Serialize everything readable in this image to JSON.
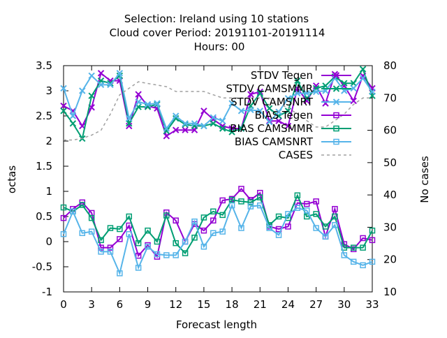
{
  "chart_data": {
    "type": "line",
    "title": [
      "Selection: Ireland using    10 stations",
      "Cloud cover   Period: 20191101-20191114",
      "Hours:  00"
    ],
    "xlabel": "Forecast length",
    "ylabel": "octas",
    "y2label": "No cases",
    "xlim": [
      0,
      33
    ],
    "ylim": [
      -1,
      3.5
    ],
    "y2lim": [
      10,
      80
    ],
    "x_ticks": [
      0,
      3,
      6,
      9,
      12,
      15,
      18,
      21,
      24,
      27,
      30,
      33
    ],
    "y_ticks": [
      "3.5",
      "3",
      "2.5",
      "2",
      "1.5",
      "1",
      "0.5",
      "0",
      "-0.5",
      "-1"
    ],
    "y2_ticks": [
      "80",
      "70",
      "60",
      "50",
      "40",
      "30",
      "20",
      "10"
    ],
    "y_tick_values": [
      3.5,
      3,
      2.5,
      2,
      1.5,
      1,
      0.5,
      0,
      -0.5,
      -1
    ],
    "y2_tick_values": [
      80,
      70,
      60,
      50,
      40,
      30,
      20,
      10
    ],
    "legend_position": "top-right",
    "x": [
      0,
      1,
      2,
      3,
      4,
      5,
      6,
      7,
      8,
      9,
      10,
      11,
      12,
      13,
      14,
      15,
      16,
      17,
      18,
      19,
      20,
      21,
      22,
      23,
      24,
      25,
      26,
      27,
      28,
      29,
      30,
      31,
      32,
      33
    ],
    "series": [
      {
        "name": "STDV Tegen",
        "axis": "y",
        "color": "#9400d3",
        "marker": "x",
        "dash": false,
        "values": [
          2.7,
          2.6,
          2.3,
          2.67,
          3.35,
          3.2,
          3.2,
          2.3,
          2.93,
          2.7,
          2.65,
          2.1,
          2.22,
          2.22,
          2.22,
          2.6,
          2.43,
          2.3,
          2.25,
          2.25,
          2.93,
          2.98,
          2.4,
          2.4,
          2.3,
          3.05,
          2.8,
          3.1,
          2.75,
          3.33,
          3.1,
          2.8,
          3.3,
          3.05
        ]
      },
      {
        "name": "STDV CAMSMMR",
        "axis": "y",
        "color": "#009e73",
        "marker": "x",
        "dash": false,
        "values": [
          2.6,
          2.35,
          2.05,
          2.9,
          3.2,
          3.15,
          3.3,
          2.35,
          2.68,
          2.68,
          2.73,
          2.2,
          2.45,
          2.33,
          2.3,
          2.3,
          2.35,
          2.25,
          2.18,
          2.25,
          2.7,
          2.95,
          2.65,
          2.5,
          2.6,
          3.2,
          2.85,
          3.05,
          3.1,
          3.28,
          3.15,
          3.15,
          3.43,
          2.9
        ]
      },
      {
        "name": "STDV CAMSNRT",
        "axis": "y",
        "color": "#56b4e9",
        "marker": "x",
        "dash": false,
        "values": [
          3.05,
          2.5,
          3.0,
          3.3,
          3.12,
          3.12,
          3.35,
          2.45,
          2.78,
          2.73,
          2.75,
          2.25,
          2.5,
          2.35,
          2.35,
          2.3,
          2.47,
          2.4,
          2.75,
          2.6,
          2.62,
          2.6,
          2.38,
          2.58,
          2.85,
          2.95,
          2.95,
          2.98,
          3.0,
          3.25,
          3.0,
          3.05,
          3.25,
          2.98
        ]
      },
      {
        "name": "BIAS Tegen",
        "axis": "y",
        "color": "#9400d3",
        "marker": "square",
        "dash": false,
        "values": [
          0.47,
          0.65,
          0.78,
          0.57,
          -0.12,
          -0.12,
          0.05,
          0.32,
          -0.28,
          -0.07,
          -0.3,
          0.58,
          0.42,
          0.0,
          0.35,
          0.22,
          0.42,
          0.82,
          0.85,
          1.05,
          0.83,
          0.97,
          0.3,
          0.25,
          0.3,
          0.77,
          0.75,
          0.8,
          0.1,
          0.65,
          -0.05,
          -0.15,
          0.07,
          0.03
        ]
      },
      {
        "name": "BIAS CAMSMMR",
        "axis": "y",
        "color": "#009e73",
        "marker": "square",
        "dash": false,
        "values": [
          0.68,
          0.6,
          0.73,
          0.47,
          0.03,
          0.27,
          0.25,
          0.5,
          -0.03,
          0.22,
          0.0,
          0.52,
          -0.03,
          -0.23,
          0.08,
          0.48,
          0.6,
          0.53,
          0.83,
          0.8,
          0.78,
          0.88,
          0.33,
          0.5,
          0.47,
          0.92,
          0.5,
          0.55,
          0.3,
          0.5,
          -0.12,
          -0.12,
          -0.12,
          0.22
        ]
      },
      {
        "name": "BIAS CAMSNRT",
        "axis": "y",
        "color": "#56b4e9",
        "marker": "square",
        "dash": false,
        "values": [
          0.15,
          0.6,
          0.17,
          0.2,
          -0.2,
          -0.2,
          -0.63,
          0.15,
          -0.52,
          -0.1,
          -0.25,
          -0.27,
          -0.27,
          0.0,
          0.4,
          -0.1,
          0.17,
          0.2,
          0.72,
          0.27,
          0.7,
          0.72,
          0.27,
          0.13,
          0.55,
          0.67,
          0.62,
          0.27,
          0.1,
          0.33,
          -0.27,
          -0.4,
          -0.47,
          -0.4
        ]
      },
      {
        "name": "CASES",
        "axis": "y2",
        "color": "#a0a0a0",
        "marker": "none",
        "dash": true,
        "values": [
          57,
          57,
          57.5,
          58.5,
          60,
          65,
          71,
          73,
          75,
          74.5,
          74,
          73.5,
          72,
          72,
          72,
          72,
          71,
          70,
          70,
          70,
          70,
          70,
          70,
          68,
          67,
          65,
          63,
          61,
          61,
          63,
          65,
          68,
          70,
          70
        ]
      }
    ]
  }
}
